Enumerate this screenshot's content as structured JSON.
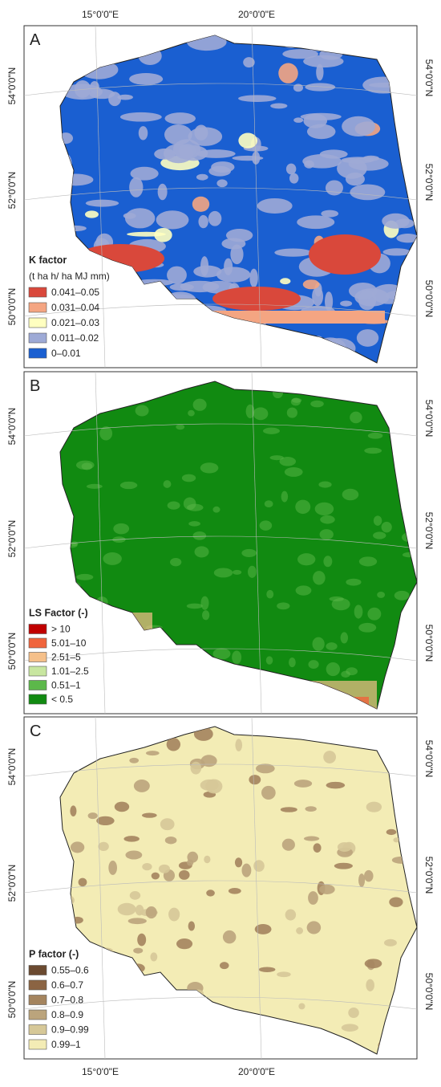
{
  "graticule": {
    "top": [
      "15°0'0\"E",
      "20°0'0\"E"
    ],
    "bottom": [
      "15°0'0\"E",
      "20°0'0\"E"
    ]
  },
  "panels": [
    {
      "letter": "A",
      "lat_labels": [
        "54°0'0\"N",
        "52°0'0\"N",
        "50°0'0\"N"
      ],
      "legend": {
        "title": "K factor",
        "subtitle": "(t ha h/ ha MJ mm)",
        "items": [
          {
            "label": "0.041–0.05",
            "color": "#d9483b"
          },
          {
            "label": "0.031–0.04",
            "color": "#f4a582"
          },
          {
            "label": "0.021–0.03",
            "color": "#ffffc0"
          },
          {
            "label": "0.011–0.02",
            "color": "#9eaad6"
          },
          {
            "label": "0–0.01",
            "color": "#1a5fd1"
          }
        ]
      }
    },
    {
      "letter": "B",
      "lat_labels": [
        "54°0'0\"N",
        "52°0'0\"N",
        "50°0'0\"N"
      ],
      "legend": {
        "title": "LS Factor (-)",
        "items": [
          {
            "label": "> 10",
            "color": "#c00000"
          },
          {
            "label": "5.01–10",
            "color": "#f0643c"
          },
          {
            "label": "2.51–5",
            "color": "#f5c08a"
          },
          {
            "label": "1.01–2.5",
            "color": "#c8e6a0"
          },
          {
            "label": "0.51–1",
            "color": "#5cb84a"
          },
          {
            "label": "< 0.5",
            "color": "#118a11"
          }
        ]
      }
    },
    {
      "letter": "C",
      "lat_labels": [
        "54°0'0\"N",
        "52°0'0\"N",
        "50°0'0\"N"
      ],
      "legend": {
        "title": "P factor (-)",
        "items": [
          {
            "label": "0.55–0.6",
            "color": "#6b4a30"
          },
          {
            "label": "0.6–0.7",
            "color": "#8b6443"
          },
          {
            "label": "0.7–0.8",
            "color": "#a4845e"
          },
          {
            "label": "0.8–0.9",
            "color": "#bba47c"
          },
          {
            "label": "0.9–0.99",
            "color": "#d6c898"
          },
          {
            "label": "0.99–1",
            "color": "#f3ecb5"
          }
        ]
      }
    }
  ]
}
